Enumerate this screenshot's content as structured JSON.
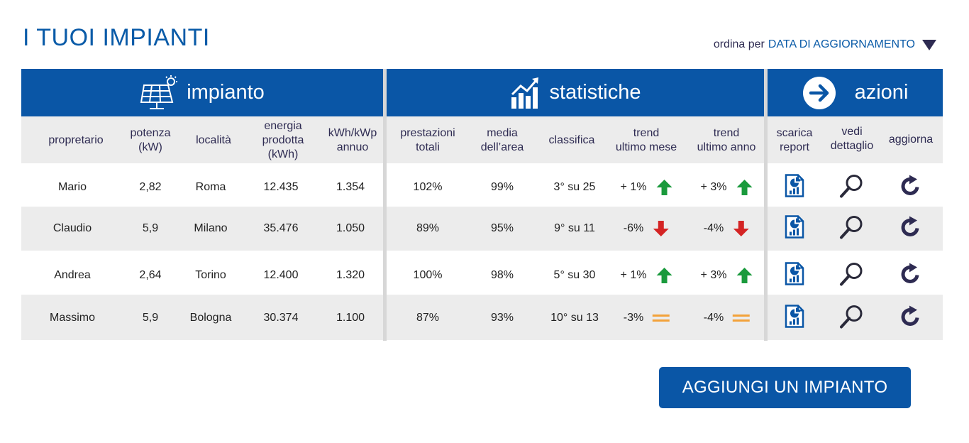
{
  "title": "I TUOI IMPIANTI",
  "sort": {
    "label": "ordina per",
    "value": "DATA DI AGGIORNAMENTO"
  },
  "sections": {
    "impianto": "impianto",
    "statistiche": "statistiche",
    "azioni": "azioni"
  },
  "headers": {
    "proprietario": "propretario",
    "potenza": [
      "potenza",
      "(kW)"
    ],
    "localita": "località",
    "energia": [
      "energia",
      "prodotta",
      "(kWh)"
    ],
    "kwh_kwp": [
      "kWh/kWp",
      "annuo"
    ],
    "prestazioni": [
      "prestazioni",
      "totali"
    ],
    "media": [
      "media",
      "dell’area"
    ],
    "classifica": "classifica",
    "trend_mese": [
      "trend",
      "ultimo mese"
    ],
    "trend_anno": [
      "trend",
      "ultimo anno"
    ],
    "scarica": [
      "scarica",
      "report"
    ],
    "vedi": [
      "vedi",
      "dettaglio"
    ],
    "aggiorna": "aggiorna"
  },
  "rows": [
    {
      "proprietario": "Mario",
      "potenza": "2,82",
      "localita": "Roma",
      "energia": "12.435",
      "kwh_kwp": "1.354",
      "prestazioni": "102%",
      "media": "99%",
      "classifica": "3° su 25",
      "trend_mese": "+ 1%",
      "trend_mese_dir": "up",
      "trend_anno": "+ 3%",
      "trend_anno_dir": "up"
    },
    {
      "proprietario": "Claudio",
      "potenza": "5,9",
      "localita": "Milano",
      "energia": "35.476",
      "kwh_kwp": "1.050",
      "prestazioni": "89%",
      "media": "95%",
      "classifica": "9° su 11",
      "trend_mese": "-6%",
      "trend_mese_dir": "down",
      "trend_anno": "-4%",
      "trend_anno_dir": "down"
    },
    {
      "proprietario": "Andrea",
      "potenza": "2,64",
      "localita": "Torino",
      "energia": "12.400",
      "kwh_kwp": "1.320",
      "prestazioni": "100%",
      "media": "98%",
      "classifica": "5° su 30",
      "trend_mese": "+ 1%",
      "trend_mese_dir": "up",
      "trend_anno": "+ 3%",
      "trend_anno_dir": "up"
    },
    {
      "proprietario": "Massimo",
      "potenza": "5,9",
      "localita": "Bologna",
      "energia": "30.374",
      "kwh_kwp": "1.100",
      "prestazioni": "87%",
      "media": "93%",
      "classifica": "10° su 13",
      "trend_mese": "-3%",
      "trend_mese_dir": "equal",
      "trend_anno": "-4%",
      "trend_anno_dir": "equal"
    }
  ],
  "icons": {
    "impianto": "solar-panel-icon",
    "statistiche": "chart-growth-icon",
    "azioni": "arrow-right-circle-icon",
    "trend_up": "arrow-up-icon",
    "trend_down": "arrow-down-icon",
    "trend_equal": "equal-icon",
    "scarica": "report-document-icon",
    "vedi": "magnifier-icon",
    "aggiorna": "refresh-icon"
  },
  "colors": {
    "primary": "#0a56a6",
    "title": "#0a5ba8",
    "trend_up": "#1a9a3c",
    "trend_down": "#d42424",
    "trend_equal": "#f3a23a",
    "band": "#ececec"
  },
  "add_button": "AGGIUNGI UN IMPIANTO"
}
